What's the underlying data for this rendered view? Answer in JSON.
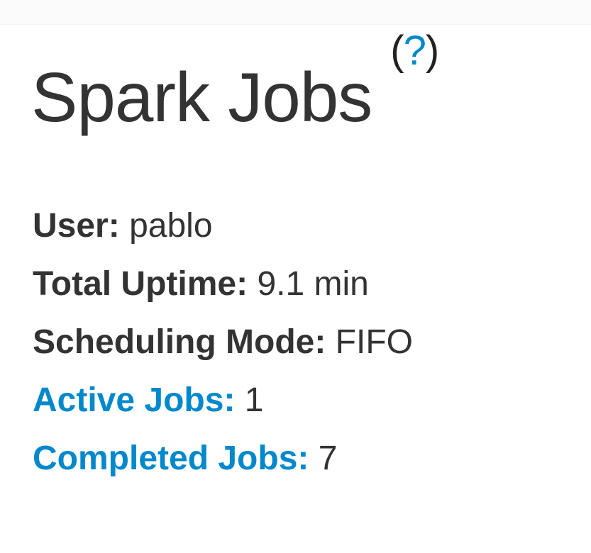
{
  "page_title": "Spark Jobs",
  "help_link": "?",
  "summary": [
    {
      "label": "User:",
      "value": "pablo",
      "link": false
    },
    {
      "label": "Total Uptime:",
      "value": "9.1 min",
      "link": false
    },
    {
      "label": "Scheduling Mode:",
      "value": "FIFO",
      "link": false
    },
    {
      "label": "Active Jobs:",
      "value": "1",
      "link": true
    },
    {
      "label": "Completed Jobs:",
      "value": "7",
      "link": true
    }
  ],
  "colors": {
    "text": "#333333",
    "link": "#0088cc"
  }
}
